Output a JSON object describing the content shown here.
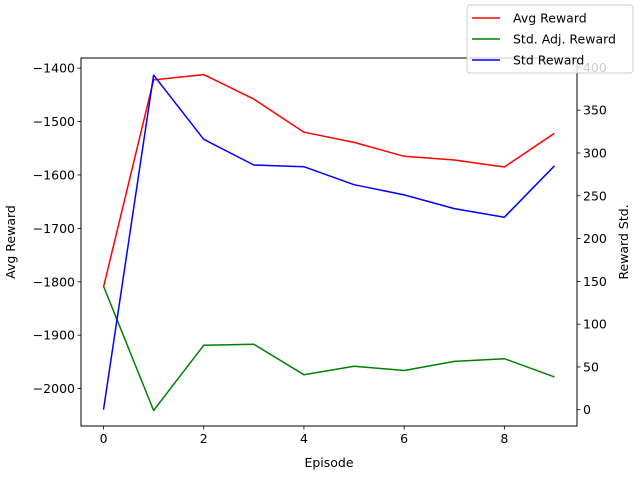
{
  "chart_data": {
    "type": "line",
    "xlabel": "Episode",
    "ylabel_left": "Avg Reward",
    "ylabel_right": "Reward Std.",
    "xlim": [
      -0.45,
      9.45
    ],
    "ylim_left": [
      -2070,
      -1381
    ],
    "ylim_right": [
      -19,
      411
    ],
    "xticks": [
      0,
      2,
      4,
      6,
      8
    ],
    "yticks_left": [
      -2000,
      -1900,
      -1800,
      -1700,
      -1600,
      -1500,
      -1400
    ],
    "yticks_right": [
      0,
      50,
      100,
      150,
      200,
      250,
      300,
      350,
      400
    ],
    "grid": false,
    "legend_position": "top-right",
    "x": [
      0,
      1,
      2,
      3,
      4,
      5,
      6,
      7,
      8,
      9
    ],
    "series": [
      {
        "name": "Avg Reward",
        "axis": "left",
        "color": "#ff0000",
        "values": [
          -1810,
          -1422,
          -1412,
          -1458,
          -1520,
          -1539,
          -1565,
          -1572,
          -1585,
          -1522
        ]
      },
      {
        "name": "Std. Adj. Reward",
        "axis": "left",
        "color": "#008000",
        "values": [
          -1808,
          -2041,
          -1919,
          -1917,
          -1974,
          -1958,
          -1966,
          -1949,
          -1944,
          -1978
        ]
      },
      {
        "name": "Std Reward",
        "axis": "right",
        "color": "#0000ff",
        "values": [
          0,
          391,
          316,
          286,
          284,
          263,
          251,
          235,
          225,
          285
        ]
      }
    ]
  }
}
